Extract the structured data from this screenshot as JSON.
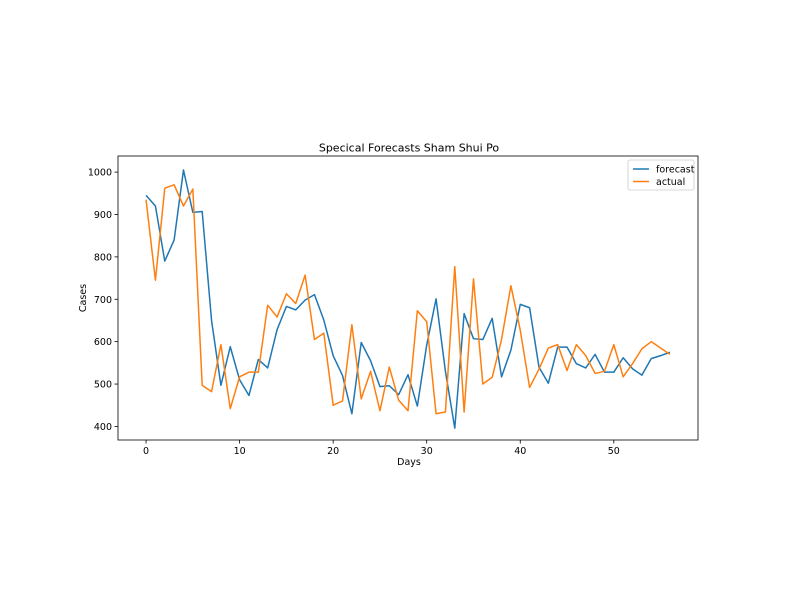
{
  "chart_data": {
    "type": "line",
    "title": "Specical Forecasts Sham Shui Po",
    "xlabel": "Days",
    "ylabel": "Cases",
    "xlim": [
      -3,
      59
    ],
    "ylim": [
      368,
      1038
    ],
    "xticks": [
      0,
      10,
      20,
      30,
      40,
      50
    ],
    "yticks": [
      400,
      500,
      600,
      700,
      800,
      900,
      1000
    ],
    "grid": false,
    "legend": "upper-right",
    "x": [
      0,
      1,
      2,
      3,
      4,
      5,
      6,
      7,
      8,
      9,
      10,
      11,
      12,
      13,
      14,
      15,
      16,
      17,
      18,
      19,
      20,
      21,
      22,
      23,
      24,
      25,
      26,
      27,
      28,
      29,
      30,
      31,
      32,
      33,
      34,
      35,
      36,
      37,
      38,
      39,
      40,
      41,
      42,
      43,
      44,
      45,
      46,
      47,
      48,
      49,
      50,
      51,
      52,
      53,
      54,
      55,
      56
    ],
    "series": [
      {
        "name": "forecast",
        "color": "#1f77b4",
        "values": [
          945,
          920,
          790,
          840,
          1005,
          905,
          907,
          650,
          497,
          588,
          510,
          473,
          558,
          538,
          628,
          683,
          675,
          698,
          711,
          651,
          567,
          520,
          430,
          598,
          555,
          494,
          496,
          475,
          522,
          448,
          592,
          701,
          530,
          396,
          666,
          607,
          605,
          655,
          517,
          580,
          688,
          680,
          540,
          502,
          587,
          587,
          548,
          538,
          570,
          528,
          528,
          562,
          536,
          521,
          560,
          567,
          575
        ]
      },
      {
        "name": "actual",
        "color": "#ff7f0e",
        "values": [
          935,
          745,
          962,
          970,
          920,
          960,
          497,
          482,
          593,
          442,
          517,
          528,
          528,
          686,
          658,
          713,
          690,
          757,
          605,
          620,
          450,
          460,
          640,
          465,
          530,
          437,
          540,
          462,
          437,
          673,
          647,
          430,
          434,
          777,
          434,
          748,
          500,
          516,
          605,
          732,
          627,
          492,
          535,
          585,
          593,
          532,
          593,
          567,
          525,
          530,
          593,
          517,
          548,
          583,
          600,
          585,
          570
        ]
      }
    ]
  }
}
